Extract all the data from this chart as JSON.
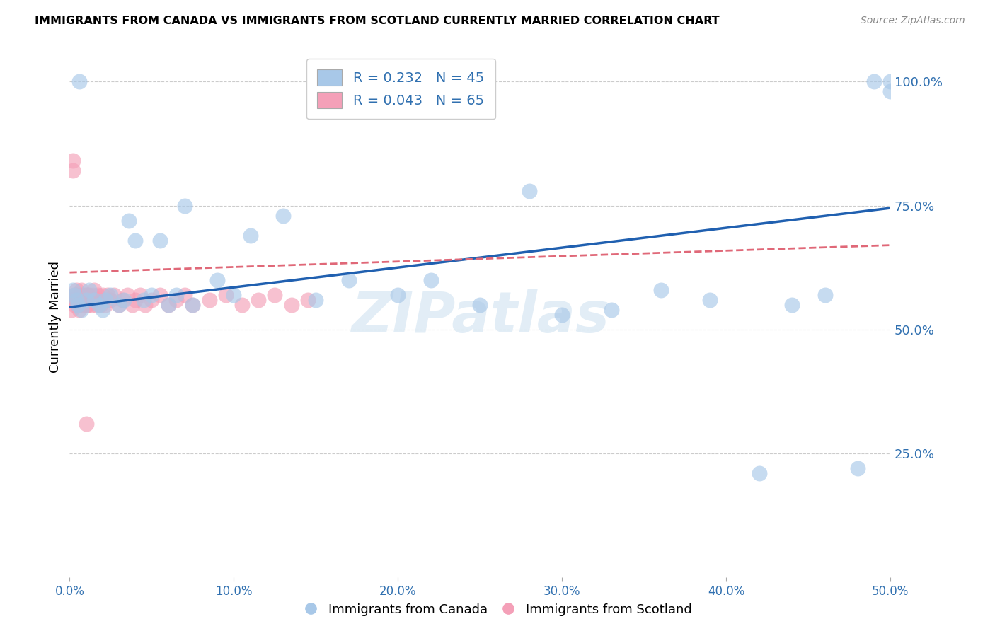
{
  "title": "IMMIGRANTS FROM CANADA VS IMMIGRANTS FROM SCOTLAND CURRENTLY MARRIED CORRELATION CHART",
  "source": "Source: ZipAtlas.com",
  "ylabel": "Currently Married",
  "xlim": [
    0.0,
    0.5
  ],
  "ylim": [
    0.0,
    1.05
  ],
  "xtick_labels": [
    "0.0%",
    "10.0%",
    "20.0%",
    "30.0%",
    "40.0%",
    "50.0%"
  ],
  "xtick_vals": [
    0.0,
    0.1,
    0.2,
    0.3,
    0.4,
    0.5
  ],
  "ytick_labels": [
    "25.0%",
    "50.0%",
    "75.0%",
    "100.0%"
  ],
  "ytick_vals": [
    0.25,
    0.5,
    0.75,
    1.0
  ],
  "canada_color": "#a8c8e8",
  "scotland_color": "#f4a0b8",
  "canada_line_color": "#2060b0",
  "scotland_line_color": "#e06878",
  "legend_r_canada": "R = 0.232",
  "legend_n_canada": "N = 45",
  "legend_r_scotland": "R = 0.043",
  "legend_n_scotland": "N = 65",
  "watermark": "ZIPatlas",
  "canada_x": [
    0.002,
    0.003,
    0.004,
    0.005,
    0.006,
    0.007,
    0.01,
    0.012,
    0.015,
    0.018,
    0.02,
    0.022,
    0.025,
    0.03,
    0.033,
    0.036,
    0.04,
    0.045,
    0.05,
    0.055,
    0.06,
    0.065,
    0.07,
    0.075,
    0.09,
    0.1,
    0.11,
    0.13,
    0.15,
    0.17,
    0.2,
    0.22,
    0.25,
    0.28,
    0.3,
    0.33,
    0.36,
    0.39,
    0.42,
    0.44,
    0.46,
    0.48,
    0.49,
    0.5,
    0.5
  ],
  "canada_y": [
    0.58,
    0.57,
    0.56,
    0.55,
    1.0,
    0.54,
    0.56,
    0.58,
    0.56,
    0.55,
    0.54,
    0.56,
    0.57,
    0.55,
    0.56,
    0.72,
    0.68,
    0.56,
    0.57,
    0.68,
    0.55,
    0.57,
    0.75,
    0.55,
    0.6,
    0.57,
    0.69,
    0.73,
    0.56,
    0.6,
    0.57,
    0.6,
    0.55,
    0.78,
    0.53,
    0.54,
    0.58,
    0.56,
    0.21,
    0.55,
    0.57,
    0.22,
    1.0,
    0.98,
    1.0
  ],
  "scotland_x": [
    0.001,
    0.001,
    0.002,
    0.002,
    0.003,
    0.003,
    0.003,
    0.004,
    0.004,
    0.004,
    0.005,
    0.005,
    0.005,
    0.006,
    0.006,
    0.006,
    0.007,
    0.007,
    0.008,
    0.008,
    0.009,
    0.009,
    0.01,
    0.01,
    0.01,
    0.011,
    0.011,
    0.012,
    0.012,
    0.013,
    0.013,
    0.014,
    0.015,
    0.015,
    0.016,
    0.017,
    0.018,
    0.019,
    0.02,
    0.021,
    0.022,
    0.023,
    0.025,
    0.027,
    0.03,
    0.032,
    0.035,
    0.038,
    0.04,
    0.043,
    0.046,
    0.05,
    0.055,
    0.06,
    0.065,
    0.07,
    0.075,
    0.085,
    0.095,
    0.105,
    0.115,
    0.125,
    0.135,
    0.145,
    0.01
  ],
  "scotland_y": [
    0.56,
    0.54,
    0.82,
    0.84,
    0.56,
    0.57,
    0.55,
    0.58,
    0.56,
    0.57,
    0.55,
    0.56,
    0.57,
    0.54,
    0.55,
    0.56,
    0.58,
    0.57,
    0.56,
    0.55,
    0.57,
    0.56,
    0.57,
    0.55,
    0.56,
    0.57,
    0.55,
    0.56,
    0.57,
    0.55,
    0.56,
    0.57,
    0.58,
    0.56,
    0.55,
    0.57,
    0.56,
    0.55,
    0.57,
    0.56,
    0.55,
    0.57,
    0.56,
    0.57,
    0.55,
    0.56,
    0.57,
    0.55,
    0.56,
    0.57,
    0.55,
    0.56,
    0.57,
    0.55,
    0.56,
    0.57,
    0.55,
    0.56,
    0.57,
    0.55,
    0.56,
    0.57,
    0.55,
    0.56,
    0.31
  ]
}
